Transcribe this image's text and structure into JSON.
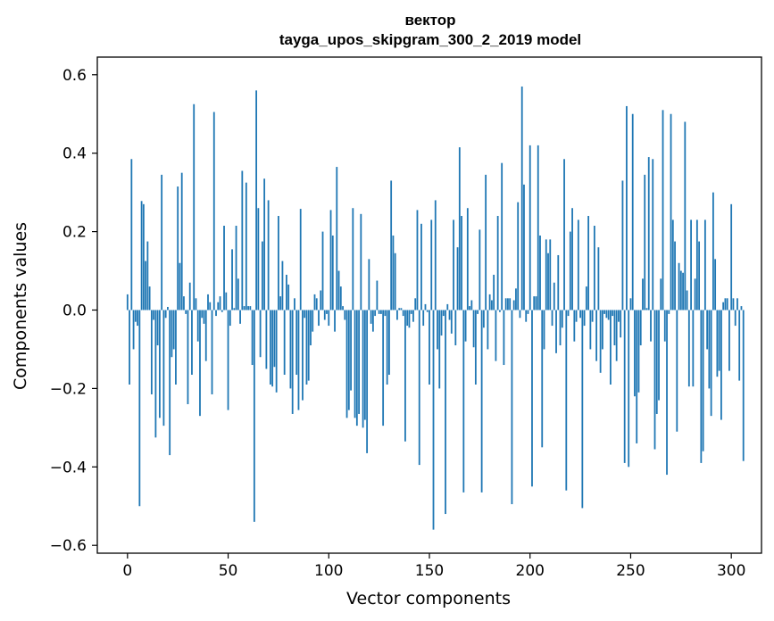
{
  "chart_data": {
    "type": "bar",
    "title": "вектор\ntayga_upos_skipgram_300_2_2019 model",
    "title_lines": [
      "вектор",
      "tayga_upos_skipgram_300_2_2019 model"
    ],
    "xlabel": "Vector components",
    "ylabel": "Components values",
    "xlim": [
      -15,
      315
    ],
    "ylim": [
      -0.62,
      0.645
    ],
    "xticks": [
      0,
      50,
      100,
      150,
      200,
      250,
      300
    ],
    "xtick_labels": [
      "0",
      "50",
      "100",
      "150",
      "200",
      "250",
      "300"
    ],
    "yticks": [
      -0.6,
      -0.4,
      -0.2,
      0.0,
      0.2,
      0.4,
      0.6
    ],
    "ytick_labels": [
      "−0.6",
      "−0.4",
      "−0.2",
      "0.0",
      "0.2",
      "0.4",
      "0.6"
    ],
    "grid": false,
    "legend": "none",
    "bar_color": "#1f77b4",
    "values": [
      0.04,
      -0.19,
      0.385,
      -0.1,
      -0.03,
      -0.04,
      -0.5,
      0.278,
      0.27,
      0.125,
      0.175,
      0.06,
      -0.215,
      -0.025,
      -0.325,
      -0.09,
      -0.275,
      0.345,
      -0.295,
      -0.02,
      0.008,
      -0.37,
      -0.12,
      -0.1,
      -0.19,
      0.315,
      0.12,
      0.35,
      0.035,
      -0.01,
      -0.24,
      0.07,
      -0.165,
      0.525,
      0.03,
      -0.08,
      -0.27,
      -0.02,
      -0.035,
      -0.13,
      0.04,
      0.02,
      -0.215,
      0.505,
      -0.015,
      0.02,
      0.035,
      -0.005,
      0.215,
      0.045,
      -0.255,
      -0.04,
      0.155,
      0.005,
      0.215,
      0.08,
      -0.035,
      0.355,
      0.01,
      0.325,
      0.01,
      0.01,
      -0.14,
      -0.54,
      0.56,
      0.26,
      -0.12,
      0.175,
      0.335,
      -0.15,
      0.28,
      -0.19,
      -0.195,
      -0.145,
      -0.21,
      0.24,
      0.035,
      0.125,
      -0.165,
      0.09,
      0.065,
      -0.2,
      -0.265,
      0.03,
      -0.165,
      -0.255,
      0.258,
      -0.23,
      -0.02,
      -0.19,
      -0.18,
      -0.09,
      -0.055,
      0.04,
      0.03,
      -0.04,
      0.05,
      0.2,
      -0.025,
      -0.01,
      -0.04,
      0.255,
      0.19,
      -0.055,
      0.365,
      0.1,
      0.06,
      0.01,
      -0.025,
      -0.275,
      -0.255,
      -0.205,
      0.26,
      -0.275,
      -0.295,
      -0.265,
      0.245,
      -0.3,
      -0.28,
      -0.365,
      0.13,
      -0.035,
      -0.055,
      -0.015,
      0.075,
      -0.01,
      -0.01,
      -0.295,
      -0.015,
      -0.19,
      -0.165,
      0.33,
      0.19,
      0.145,
      -0.025,
      0.005,
      0.005,
      -0.015,
      -0.335,
      -0.04,
      -0.045,
      -0.01,
      -0.03,
      0.03,
      0.255,
      -0.395,
      0.22,
      -0.04,
      0.015,
      -0.005,
      -0.19,
      0.23,
      -0.56,
      0.28,
      -0.1,
      -0.2,
      -0.065,
      -0.015,
      -0.52,
      0.015,
      -0.025,
      -0.06,
      0.23,
      -0.09,
      0.16,
      0.415,
      0.24,
      -0.465,
      -0.08,
      0.26,
      0.01,
      0.025,
      -0.095,
      -0.19,
      -0.01,
      0.205,
      -0.465,
      -0.045,
      0.345,
      -0.1,
      0.04,
      0.025,
      0.09,
      -0.13,
      0.24,
      -0.005,
      0.375,
      -0.14,
      0.03,
      0.03,
      0.03,
      -0.495,
      0.025,
      0.055,
      0.275,
      -0.02,
      0.57,
      0.32,
      -0.03,
      -0.01,
      0.42,
      -0.45,
      0.035,
      0.035,
      0.42,
      0.19,
      -0.35,
      -0.1,
      0.18,
      0.145,
      0.18,
      -0.04,
      0.07,
      -0.11,
      0.14,
      -0.09,
      -0.045,
      0.385,
      -0.46,
      -0.015,
      0.2,
      0.26,
      -0.08,
      -0.03,
      0.23,
      -0.02,
      -0.505,
      -0.04,
      0.06,
      0.24,
      -0.1,
      -0.03,
      0.215,
      -0.13,
      0.16,
      -0.16,
      -0.1,
      -0.01,
      -0.02,
      -0.025,
      -0.19,
      -0.015,
      -0.09,
      -0.13,
      -0.03,
      -0.07,
      0.33,
      -0.39,
      0.52,
      -0.4,
      0.03,
      0.5,
      -0.22,
      -0.34,
      -0.21,
      -0.09,
      0.08,
      0.345,
      0.005,
      0.39,
      -0.08,
      0.385,
      -0.355,
      -0.265,
      -0.23,
      0.08,
      0.51,
      -0.08,
      -0.42,
      -0.01,
      0.5,
      0.23,
      0.175,
      -0.31,
      0.12,
      0.1,
      0.095,
      0.48,
      0.05,
      -0.195,
      0.23,
      -0.195,
      0.08,
      0.23,
      0.175,
      -0.39,
      -0.36,
      0.23,
      -0.1,
      -0.2,
      -0.27,
      0.3,
      0.13,
      -0.17,
      -0.155,
      -0.28,
      0.02,
      0.03,
      0.03,
      -0.155,
      0.27,
      0.03,
      -0.04,
      0.03,
      -0.18,
      0.01,
      -0.385
    ]
  }
}
